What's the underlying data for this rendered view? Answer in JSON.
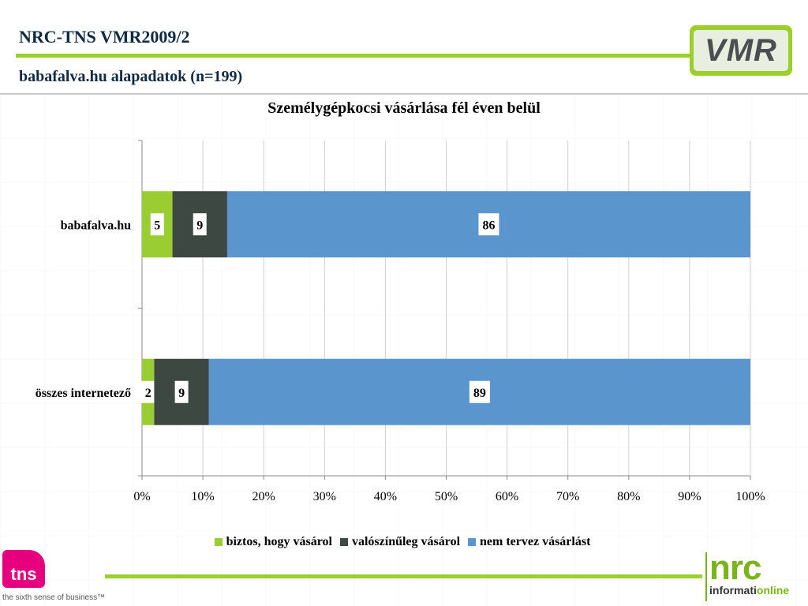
{
  "header": {
    "title": "NRC-TNS VMR2009/2",
    "subtitle": "babafalva.hu alapadatok (n=199)",
    "logo_text": "VMR"
  },
  "footer": {
    "tns_logo_text": "tns",
    "tns_tagline": "the sixth sense of business™",
    "nrc_logo_text": "nrc",
    "nrc_sub_text_1": "informati",
    "nrc_sub_text_2": "online"
  },
  "colors": {
    "accent_green": "#9ccf2c",
    "title_navy": "#0f2a44",
    "tns_magenta": "#e6007e"
  },
  "chart_data": {
    "type": "bar",
    "orientation": "horizontal",
    "stacked": true,
    "percent": true,
    "title": "Személygépkocsi vásárlása fél éven belül",
    "categories": [
      "babafalva.hu",
      "összes internetező"
    ],
    "series": [
      {
        "name": "biztos, hogy vásárol",
        "values": [
          5,
          2
        ],
        "color": "#9acd32"
      },
      {
        "name": "valószínűleg vásárol",
        "values": [
          9,
          9
        ],
        "color": "#3d4843"
      },
      {
        "name": "nem tervez vásárlást",
        "values": [
          86,
          89
        ],
        "color": "#5b95cd"
      }
    ],
    "xlim": [
      0,
      100
    ],
    "xticks": [
      "0%",
      "10%",
      "20%",
      "30%",
      "40%",
      "50%",
      "60%",
      "70%",
      "80%",
      "90%",
      "100%"
    ],
    "grid": true,
    "legend_position": "bottom"
  }
}
